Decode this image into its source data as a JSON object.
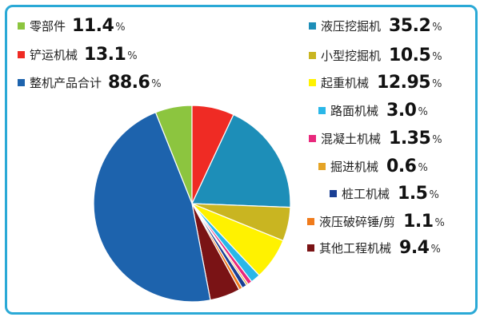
{
  "chart_data": {
    "type": "pie",
    "title": "",
    "unit": "%",
    "slices": [
      {
        "name": "零部件",
        "value": 11.4,
        "color": "#8cc53f"
      },
      {
        "name": "铲运机械",
        "value": 13.1,
        "color": "#ef2b24"
      },
      {
        "name": "液压挖掘机",
        "value": 35.2,
        "color": "#1d8eb8"
      },
      {
        "name": "小型挖掘机",
        "value": 10.5,
        "color": "#c9b521"
      },
      {
        "name": "起重机械",
        "value": 12.95,
        "color": "#fff200"
      },
      {
        "name": "路面机械",
        "value": 3.0,
        "color": "#2ab7e8"
      },
      {
        "name": "混凝土机械",
        "value": 1.35,
        "color": "#e8297c"
      },
      {
        "name": "掘进机械",
        "value": 0.6,
        "color": "#e5a426"
      },
      {
        "name": "桩工机械",
        "value": 1.5,
        "color": "#1a3f94"
      },
      {
        "name": "液压破碎锤/剪",
        "value": 1.1,
        "color": "#f07b1c"
      },
      {
        "name": "其他工程机械",
        "value": 9.4,
        "color": "#7a1315"
      },
      {
        "name": "整机产品合计",
        "value": 88.6,
        "color": "#1d63ad"
      }
    ],
    "legend": {
      "left": [
        {
          "label": "零部件",
          "value": "11.4",
          "unit": "%",
          "color": "#8cc53f"
        },
        {
          "label": "铲运机械",
          "value": "13.1",
          "unit": "%",
          "color": "#ef2b24"
        },
        {
          "label": "整机产品合计",
          "value": "88.6",
          "unit": "%",
          "color": "#1d63ad"
        }
      ],
      "right": [
        {
          "label": "液压挖掘机",
          "value": "35.2",
          "unit": "%",
          "color": "#1d8eb8"
        },
        {
          "label": "小型挖掘机",
          "value": "10.5",
          "unit": "%",
          "color": "#c9b521"
        },
        {
          "label": "起重机械",
          "value": "12.95",
          "unit": "%",
          "color": "#fff200"
        },
        {
          "label": "路面机械",
          "value": "3.0",
          "unit": "%",
          "color": "#2ab7e8"
        },
        {
          "label": "混凝土机械",
          "value": "1.35",
          "unit": "%",
          "color": "#e8297c"
        },
        {
          "label": "掘进机械",
          "value": "0.6",
          "unit": "%",
          "color": "#e5a426"
        },
        {
          "label": "桩工机械",
          "value": "1.5",
          "unit": "%",
          "color": "#1a3f94"
        },
        {
          "label": "液压破碎锤/剪",
          "value": "1.1",
          "unit": "%",
          "color": "#f07b1c"
        },
        {
          "label": "其他工程机械",
          "value": "9.4",
          "unit": "%",
          "color": "#7a1315"
        }
      ]
    },
    "colors": {
      "frame": "#2aa9d6"
    }
  }
}
